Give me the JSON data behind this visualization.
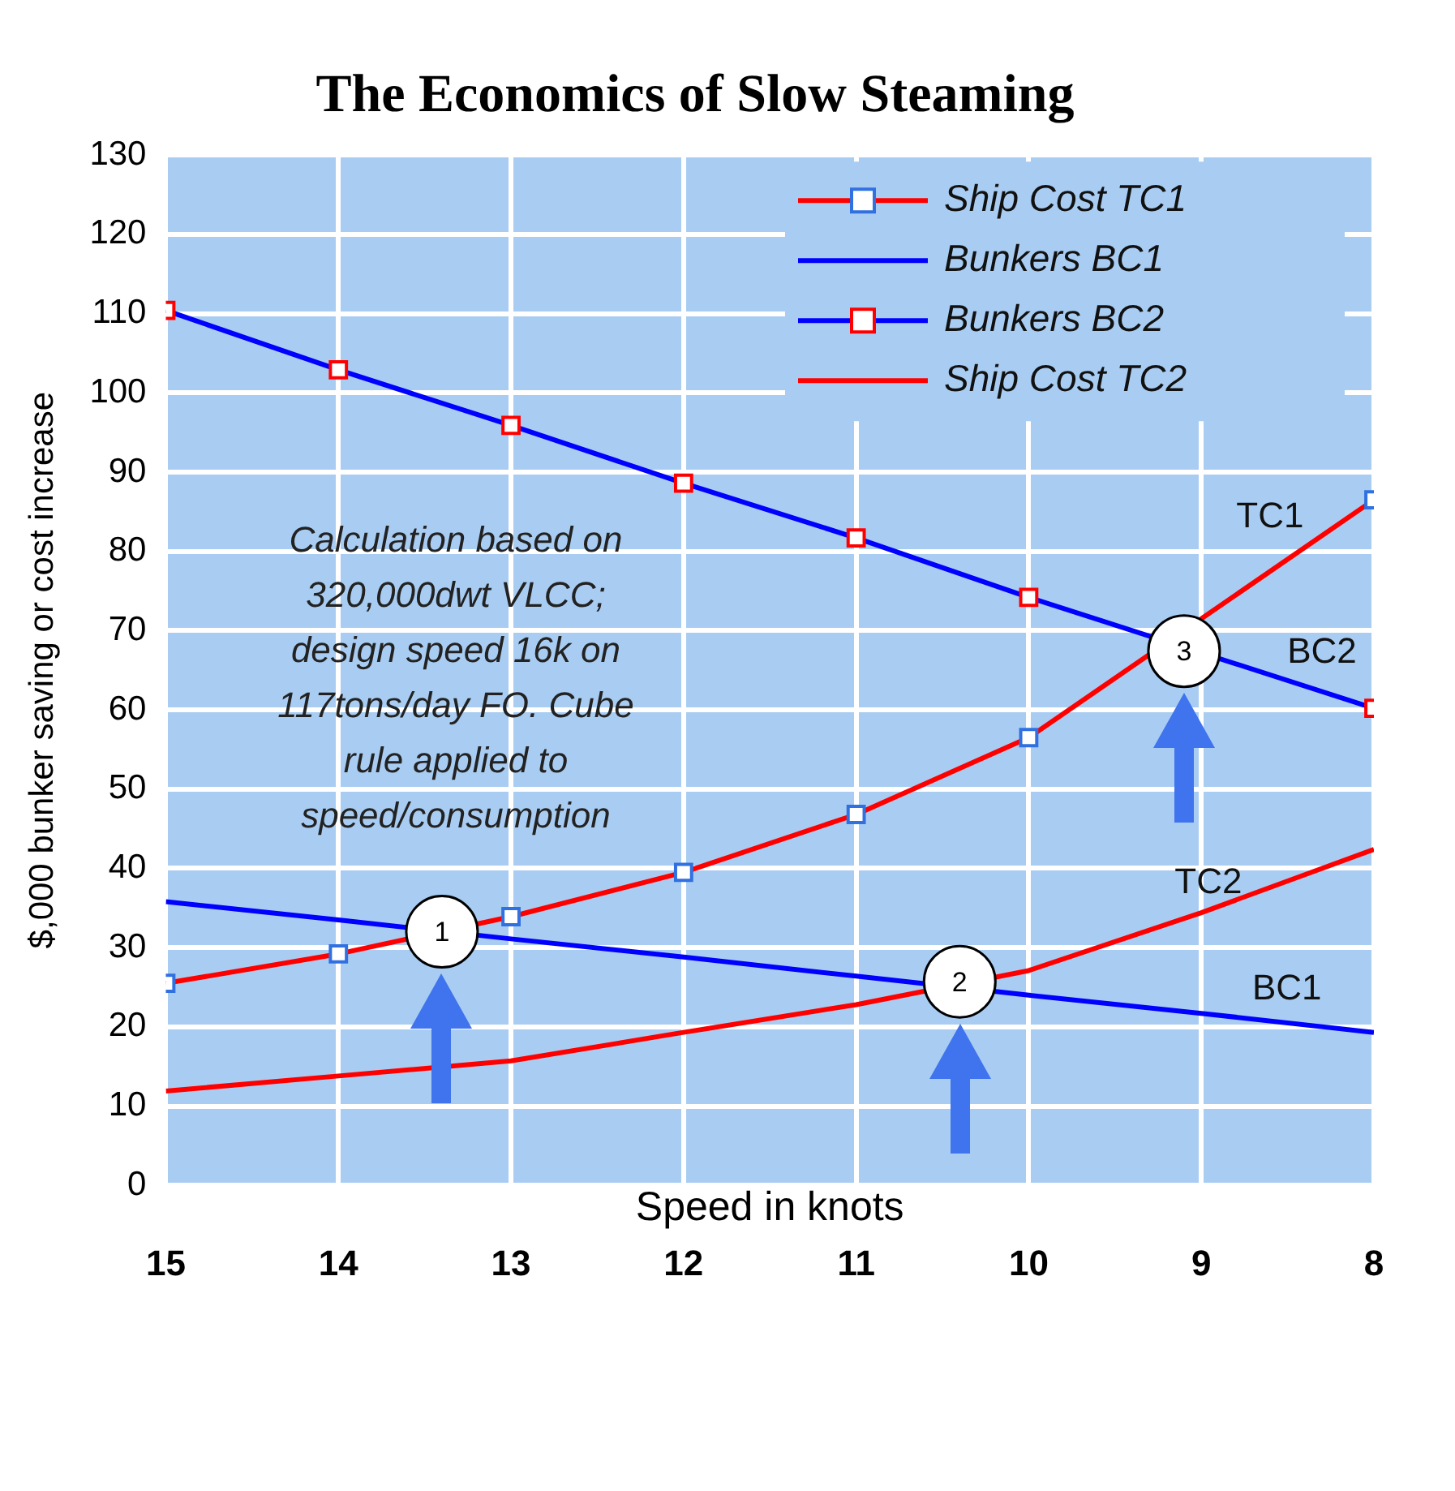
{
  "chart_data": {
    "type": "line",
    "title": "The Economics of Slow Steaming",
    "xlabel": "Speed in knots",
    "ylabel": "$,000 bunker saving or cost increase",
    "x": [
      15,
      14,
      13,
      12,
      11,
      10,
      9,
      8
    ],
    "xlim": [
      15,
      8
    ],
    "xticks": [
      15,
      14,
      13,
      12,
      11,
      10,
      9,
      8
    ],
    "ylim": [
      0,
      130
    ],
    "yticks": [
      0,
      10,
      20,
      30,
      40,
      50,
      60,
      70,
      80,
      90,
      100,
      110,
      120,
      130
    ],
    "grid": true,
    "legend": "top right",
    "line_style": "solid",
    "series": [
      {
        "name": "Ship Cost TC1",
        "color": "#ff0000",
        "marker": "square",
        "values": [
          25.5,
          29.2,
          33.9,
          39.5,
          46.8,
          56.5,
          null,
          86.5
        ]
      },
      {
        "name": "Bunkers BC1",
        "color": "#0000ff",
        "marker": "none",
        "values": [
          35.8,
          33.5,
          31.1,
          28.8,
          26.4,
          24.0,
          21.7,
          19.3
        ]
      },
      {
        "name": "Bunkers BC2",
        "color": "#0000ff",
        "marker": "square",
        "values": [
          110.4,
          102.9,
          95.9,
          88.6,
          81.7,
          74.2,
          null,
          60.2
        ]
      },
      {
        "name": "Ship Cost TC2",
        "color": "#ff0000",
        "marker": "none",
        "values": [
          11.9,
          13.8,
          15.7,
          19.3,
          22.8,
          27.1,
          34.4,
          42.4
        ]
      }
    ],
    "annotations": [
      "Calculation based on 320,000dwt VLCC; design speed 16k on 117tons/day FO. Cube rule applied to speed/consumption",
      "TC1",
      "BC2",
      "TC2",
      "BC1",
      {
        "text": "1",
        "x": 13.4,
        "y": 32
      },
      {
        "text": "2",
        "x": 10.4,
        "y": 25.7
      },
      {
        "text": "3",
        "x": 9.1,
        "y": 67.4
      }
    ]
  }
}
